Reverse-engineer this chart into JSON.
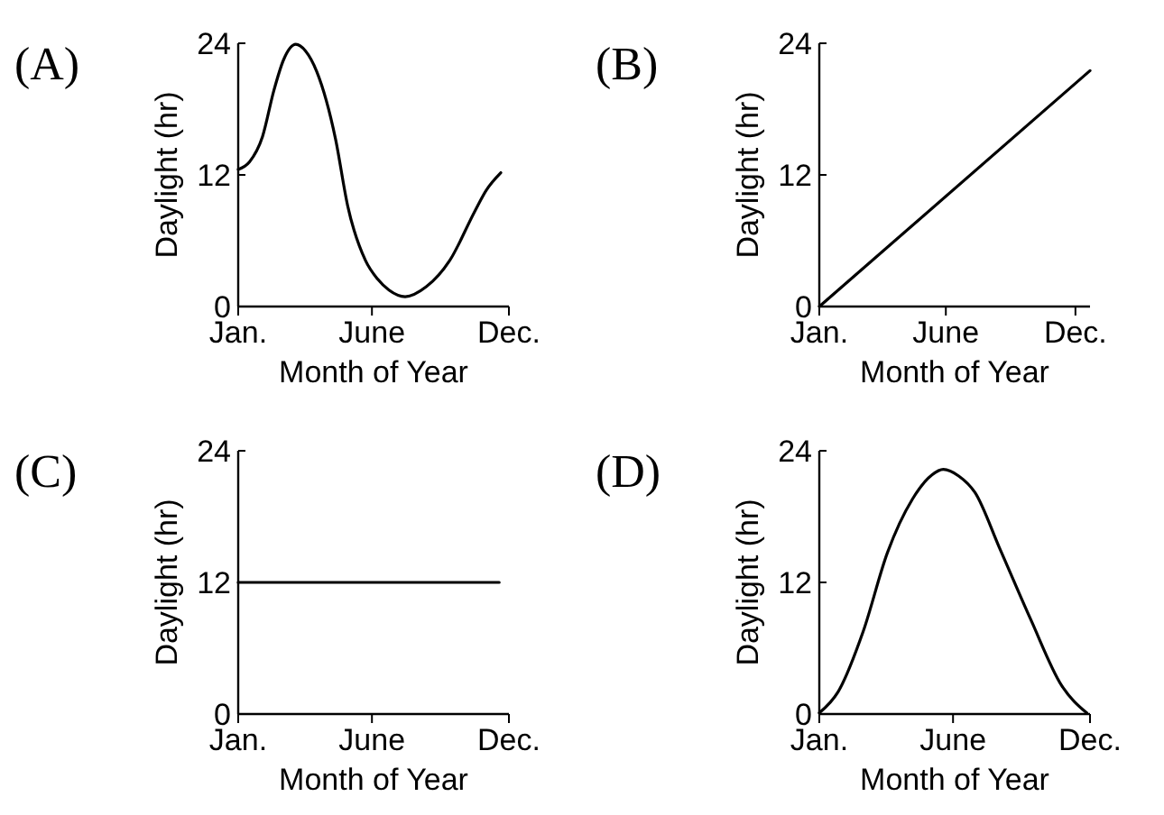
{
  "chart_data": [
    {
      "type": "line",
      "title": "(A)",
      "xlabel": "Month of Year",
      "ylabel": "Daylight (hr)",
      "xlim": [
        "--01-01",
        "--12-01"
      ],
      "xticks": [
        {
          "value": "--01-01",
          "label": "Jan."
        },
        {
          "value": "--06-15",
          "label": "June"
        },
        {
          "value": "--12-01",
          "label": "Dec."
        }
      ],
      "ylim": [
        0,
        24
      ],
      "yticks": [
        0,
        12,
        24
      ],
      "marker": "none",
      "line_style": "solid",
      "series": [
        {
          "color": "#000000",
          "x": [
            "--01-01",
            "--01-15",
            "--01-31",
            "--02-14",
            "--02-26",
            "--03-13",
            "--03-25",
            "--04-08",
            "--05-01",
            "--05-16",
            "--06-07",
            "--06-22",
            "--07-06",
            "--07-26",
            "--08-21",
            "--09-19",
            "--10-20",
            "--11-03",
            "--11-21"
          ],
          "values": [
            12.5,
            13.2,
            15.5,
            19.7,
            22.5,
            23.9,
            23.3,
            21.4,
            15.3,
            9.2,
            4.2,
            2.5,
            1.5,
            0.9,
            1.8,
            4.2,
            8.7,
            10.6,
            12.2
          ]
        }
      ]
    },
    {
      "type": "line",
      "title": "(B)",
      "xlabel": "Month of Year",
      "ylabel": "Daylight (hr)",
      "xlim": [
        "--01-01",
        "--12-20"
      ],
      "xticks": [
        {
          "value": "--01-01",
          "label": "Jan."
        },
        {
          "value": "--06-15",
          "label": "June"
        },
        {
          "value": "--12-01",
          "label": "Dec."
        }
      ],
      "ylim": [
        0,
        24
      ],
      "yticks": [
        0,
        12,
        24
      ],
      "marker": "none",
      "line_style": "solid",
      "series": [
        {
          "color": "#000000",
          "x": [
            "--01-01",
            "--12-20"
          ],
          "values": [
            0,
            21.5
          ]
        }
      ]
    },
    {
      "type": "line",
      "title": "(C)",
      "xlabel": "Month of Year",
      "ylabel": "Daylight (hr)",
      "xlim": [
        "--01-01",
        "--12-01"
      ],
      "xticks": [
        {
          "value": "--01-01",
          "label": "Jan."
        },
        {
          "value": "--06-15",
          "label": "June"
        },
        {
          "value": "--12-01",
          "label": "Dec."
        }
      ],
      "ylim": [
        0,
        24
      ],
      "yticks": [
        0,
        12,
        24
      ],
      "marker": "none",
      "line_style": "solid",
      "series": [
        {
          "color": "#000000",
          "x": [
            "--01-01",
            "--11-19"
          ],
          "values": [
            12,
            12
          ]
        }
      ]
    },
    {
      "type": "line",
      "title": "(D)",
      "xlabel": "Month of Year",
      "ylabel": "Daylight (hr)",
      "xlim": [
        "--01-01",
        "--12-01"
      ],
      "xticks": [
        {
          "value": "--01-01",
          "label": "Jan."
        },
        {
          "value": "--06-15",
          "label": "June"
        },
        {
          "value": "--12-01",
          "label": "Dec."
        }
      ],
      "ylim": [
        0,
        24
      ],
      "yticks": [
        0,
        12,
        24
      ],
      "marker": "none",
      "line_style": "solid",
      "series": [
        {
          "color": "#000000",
          "x": [
            "--01-01",
            "--01-24",
            "--02-24",
            "--03-26",
            "--04-26",
            "--05-20",
            "--06-03",
            "--06-22",
            "--07-12",
            "--08-11",
            "--09-19",
            "--10-27",
            "--11-27"
          ],
          "values": [
            0.1,
            2.0,
            7.5,
            14.7,
            19.6,
            21.8,
            22.3,
            21.7,
            20.2,
            15.2,
            8.6,
            2.6,
            0.1
          ]
        }
      ]
    }
  ]
}
